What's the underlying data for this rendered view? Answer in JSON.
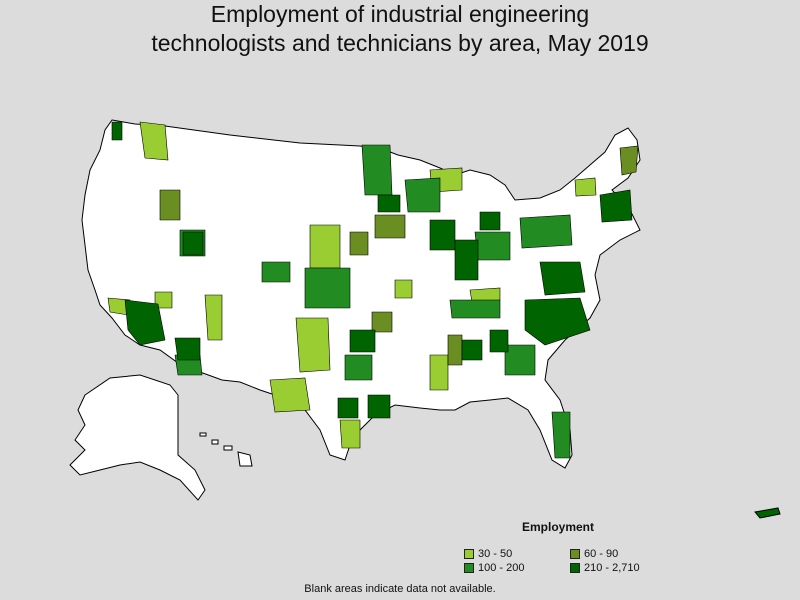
{
  "title_line1": "Employment of industrial engineering",
  "title_line2": "technologists and technicians by area, May 2019",
  "legend": {
    "title": "Employment",
    "items": [
      {
        "label": "30 - 50",
        "color": "#9acd32"
      },
      {
        "label": "60 - 90",
        "color": "#6b8e23"
      },
      {
        "label": "100 - 200",
        "color": "#228b22"
      },
      {
        "label": "210 - 2,710",
        "color": "#006400"
      }
    ]
  },
  "note": "Blank areas indicate data not available.",
  "colors": {
    "background": "#dcdcdc",
    "no_data": "#ffffff",
    "border": "#000000"
  }
}
